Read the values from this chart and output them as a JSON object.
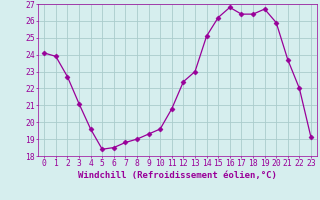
{
  "x": [
    0,
    1,
    2,
    3,
    4,
    5,
    6,
    7,
    8,
    9,
    10,
    11,
    12,
    13,
    14,
    15,
    16,
    17,
    18,
    19,
    20,
    21,
    22,
    23
  ],
  "y": [
    24.1,
    23.9,
    22.7,
    21.1,
    19.6,
    18.4,
    18.5,
    18.8,
    19.0,
    19.3,
    19.6,
    20.8,
    22.4,
    23.0,
    25.1,
    26.2,
    26.8,
    26.4,
    26.4,
    26.7,
    25.9,
    23.7,
    22.0,
    19.1
  ],
  "line_color": "#990099",
  "marker": "D",
  "bg_color": "#d6eeee",
  "grid_color": "#aacccc",
  "xlabel": "Windchill (Refroidissement éolien,°C)",
  "xlim": [
    -0.5,
    23.5
  ],
  "ylim": [
    18,
    27
  ],
  "yticks": [
    18,
    19,
    20,
    21,
    22,
    23,
    24,
    25,
    26,
    27
  ],
  "xtick_labels": [
    "0",
    "1",
    "2",
    "3",
    "4",
    "5",
    "6",
    "7",
    "8",
    "9",
    "10",
    "11",
    "12",
    "13",
    "14",
    "15",
    "16",
    "17",
    "18",
    "19",
    "20",
    "21",
    "22",
    "23"
  ],
  "label_fontsize": 6.5,
  "tick_fontsize": 5.8
}
